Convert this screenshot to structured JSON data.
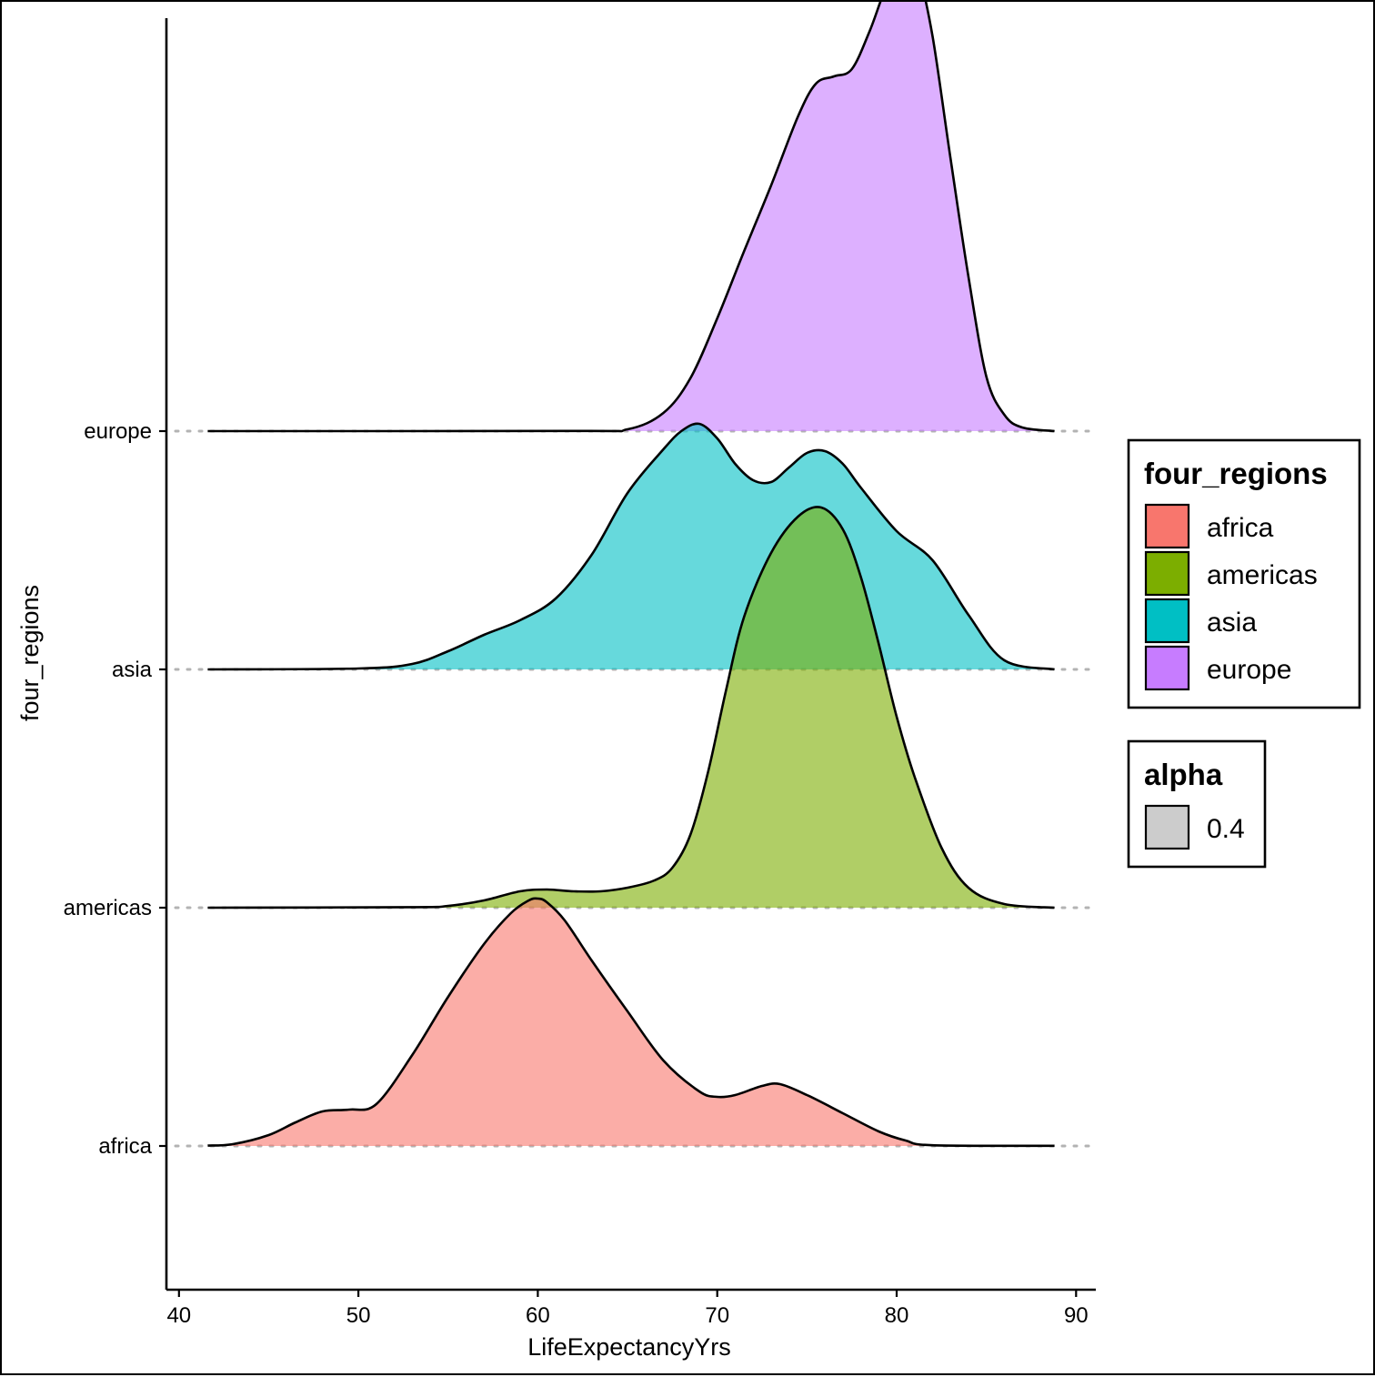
{
  "chart_data": {
    "type": "ridgeline",
    "xlabel": "LifeExpectancyYrs",
    "ylabel": "four_regions",
    "xlim": [
      39.3,
      91.1
    ],
    "x_ticks": [
      40,
      50,
      60,
      70,
      80,
      90
    ],
    "categories": [
      "africa",
      "americas",
      "asia",
      "europe"
    ],
    "grid": false,
    "legend_position": "right",
    "series": [
      {
        "name": "africa",
        "color": "#F8766D",
        "x": [
          41.6,
          43,
          45,
          46.5,
          48,
          49.5,
          51,
          53,
          55,
          57,
          58.5,
          59.5,
          60,
          60.5,
          61.5,
          63,
          65,
          67,
          69,
          70,
          71,
          72.5,
          73.5,
          75,
          77,
          79,
          80.5,
          82,
          88.8
        ],
        "density": [
          0.002,
          0.01,
          0.06,
          0.13,
          0.19,
          0.2,
          0.23,
          0.5,
          0.82,
          1.11,
          1.28,
          1.35,
          1.36,
          1.34,
          1.24,
          1.02,
          0.74,
          0.47,
          0.3,
          0.27,
          0.28,
          0.33,
          0.34,
          0.28,
          0.18,
          0.08,
          0.03,
          0.004,
          0.001
        ]
      },
      {
        "name": "americas",
        "color": "#7CAE00",
        "x": [
          41.6,
          53,
          55,
          57,
          59,
          60.5,
          62,
          63.5,
          65,
          66.5,
          67.5,
          68.5,
          69.5,
          70.5,
          71.5,
          73,
          74.5,
          75.8,
          77,
          78,
          79,
          80,
          81,
          82.5,
          84,
          86,
          88.8
        ],
        "density": [
          0.0,
          0.003,
          0.01,
          0.04,
          0.09,
          0.1,
          0.09,
          0.09,
          0.11,
          0.15,
          0.22,
          0.4,
          0.75,
          1.2,
          1.6,
          1.95,
          2.15,
          2.2,
          2.08,
          1.82,
          1.45,
          1.05,
          0.72,
          0.33,
          0.11,
          0.02,
          0.0
        ]
      },
      {
        "name": "asia",
        "color": "#00BFC4",
        "x": [
          41.6,
          50,
          53,
          55,
          57,
          59,
          61,
          63,
          65,
          67,
          68,
          69,
          70,
          71,
          72,
          73,
          74,
          75,
          76,
          77,
          78,
          80,
          82,
          84,
          86,
          88.8
        ],
        "density": [
          0.0,
          0.005,
          0.03,
          0.1,
          0.19,
          0.27,
          0.39,
          0.63,
          0.97,
          1.21,
          1.31,
          1.35,
          1.27,
          1.13,
          1.04,
          1.03,
          1.11,
          1.19,
          1.2,
          1.13,
          1.0,
          0.76,
          0.6,
          0.3,
          0.05,
          0.0
        ]
      },
      {
        "name": "europe",
        "color": "#C77CFF",
        "x": [
          41.6,
          62,
          65,
          67,
          68.5,
          70,
          71.5,
          73,
          74.5,
          75.5,
          76.5,
          77.5,
          78.5,
          79.5,
          80.5,
          81.2,
          82,
          83,
          84,
          85,
          86,
          87,
          88.8
        ],
        "density": [
          0.0,
          0.001,
          0.01,
          0.1,
          0.29,
          0.62,
          0.99,
          1.35,
          1.73,
          1.91,
          1.95,
          1.99,
          2.2,
          2.46,
          2.59,
          2.52,
          2.17,
          1.5,
          0.85,
          0.3,
          0.09,
          0.02,
          0.0
        ]
      }
    ],
    "legends": [
      {
        "title": "four_regions",
        "entries": [
          "africa",
          "americas",
          "asia",
          "europe"
        ]
      },
      {
        "title": "alpha",
        "entries": [
          "0.4"
        ],
        "color": "#CCCCCC"
      }
    ]
  }
}
